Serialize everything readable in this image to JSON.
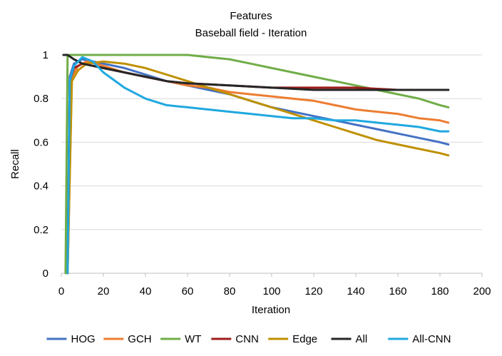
{
  "chart_data": {
    "type": "line",
    "title": "Features",
    "subtitle": "Baseball field - Iteration",
    "xlabel": "Iteration",
    "ylabel": "Recall",
    "xlim": [
      0,
      200
    ],
    "ylim": [
      0,
      1
    ],
    "xticks": [
      "0",
      "20",
      "40",
      "60",
      "80",
      "100",
      "120",
      "140",
      "160",
      "180",
      "200"
    ],
    "yticks": [
      "0",
      "0.2",
      "0.4",
      "0.6",
      "0.8",
      "1"
    ],
    "grid": "horizontal",
    "legend_position": "bottom",
    "series": [
      {
        "name": "HOG",
        "color": "#4472C4",
        "x": [
          3,
          4,
          6,
          10,
          20,
          30,
          40,
          50,
          60,
          70,
          80,
          90,
          100,
          110,
          120,
          130,
          140,
          150,
          160,
          170,
          180,
          184
        ],
        "y": [
          0,
          0.9,
          0.96,
          0.98,
          0.96,
          0.94,
          0.91,
          0.88,
          0.86,
          0.84,
          0.82,
          0.79,
          0.76,
          0.74,
          0.72,
          0.7,
          0.68,
          0.66,
          0.64,
          0.62,
          0.6,
          0.59
        ]
      },
      {
        "name": "GCH",
        "color": "#ED7D31",
        "x": [
          3,
          5,
          8,
          12,
          20,
          30,
          40,
          50,
          60,
          70,
          80,
          90,
          100,
          110,
          120,
          130,
          140,
          150,
          160,
          170,
          180,
          184
        ],
        "y": [
          0,
          0.9,
          0.95,
          0.97,
          0.95,
          0.92,
          0.9,
          0.88,
          0.86,
          0.85,
          0.83,
          0.82,
          0.81,
          0.8,
          0.79,
          0.77,
          0.75,
          0.74,
          0.73,
          0.71,
          0.7,
          0.69
        ]
      },
      {
        "name": "WT",
        "color": "#70AD47",
        "x": [
          2,
          3,
          5,
          10,
          20,
          40,
          60,
          70,
          80,
          90,
          100,
          110,
          120,
          130,
          140,
          150,
          160,
          170,
          180,
          184
        ],
        "y": [
          0,
          1,
          1,
          1,
          1,
          1,
          1,
          0.99,
          0.98,
          0.96,
          0.94,
          0.92,
          0.9,
          0.88,
          0.86,
          0.84,
          0.82,
          0.8,
          0.77,
          0.76
        ]
      },
      {
        "name": "CNN",
        "color": "#9E1B1B",
        "x": [
          3,
          4,
          6,
          10,
          20,
          30,
          40,
          50,
          60,
          80,
          100,
          120,
          140,
          160,
          180,
          184
        ],
        "y": [
          0,
          0.88,
          0.94,
          0.96,
          0.94,
          0.92,
          0.9,
          0.88,
          0.87,
          0.86,
          0.85,
          0.85,
          0.85,
          0.84,
          0.84,
          0.84
        ]
      },
      {
        "name": "Edge",
        "color": "#BF9000",
        "x": [
          3,
          5,
          8,
          12,
          20,
          30,
          40,
          50,
          60,
          70,
          80,
          90,
          100,
          110,
          120,
          130,
          140,
          150,
          160,
          170,
          180,
          184
        ],
        "y": [
          0,
          0.88,
          0.93,
          0.96,
          0.97,
          0.96,
          0.94,
          0.91,
          0.88,
          0.85,
          0.82,
          0.79,
          0.76,
          0.73,
          0.7,
          0.67,
          0.64,
          0.61,
          0.59,
          0.57,
          0.55,
          0.54
        ]
      },
      {
        "name": "All",
        "color": "#262626",
        "x": [
          1,
          2,
          3,
          6,
          10,
          20,
          30,
          40,
          50,
          60,
          80,
          100,
          120,
          140,
          160,
          180,
          184
        ],
        "y": [
          1,
          1,
          1,
          0.98,
          0.96,
          0.94,
          0.92,
          0.9,
          0.88,
          0.87,
          0.86,
          0.85,
          0.84,
          0.84,
          0.84,
          0.84,
          0.84
        ]
      },
      {
        "name": "All-CNN",
        "color": "#1FA8E0",
        "x": [
          3,
          4,
          6,
          10,
          15,
          20,
          30,
          40,
          50,
          60,
          70,
          80,
          90,
          100,
          110,
          120,
          130,
          140,
          150,
          160,
          170,
          180,
          184
        ],
        "y": [
          0,
          0.88,
          0.95,
          0.99,
          0.97,
          0.92,
          0.85,
          0.8,
          0.77,
          0.76,
          0.75,
          0.74,
          0.73,
          0.72,
          0.71,
          0.71,
          0.7,
          0.7,
          0.69,
          0.68,
          0.67,
          0.65,
          0.65
        ]
      }
    ]
  }
}
